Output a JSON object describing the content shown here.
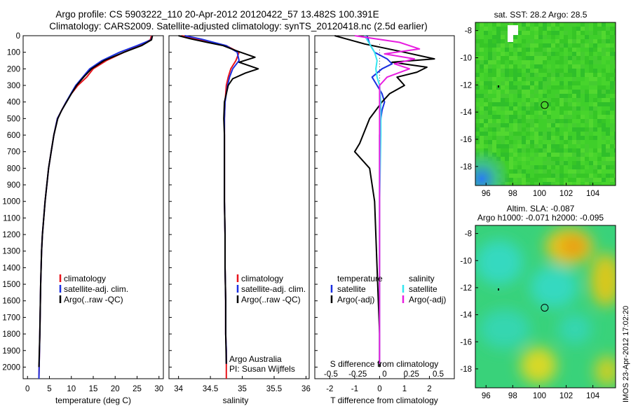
{
  "header": {
    "line1": "Argo profile: CS 5903222_110 20-Apr-2012 20120422_57 13.482S 100.391E",
    "line2": "Climatology: CARS2009. Satellite-adjusted climatology: synTS_20120418.nc (2.5d earlier)"
  },
  "legend": {
    "climatology": "climatology",
    "satellite_adj": "satellite-adj. clim.",
    "argo": "Argo(..raw -QC)",
    "diff_temperature_title": "temperature",
    "diff_salinity_title": "salinity",
    "diff_satellite": "satellite",
    "diff_argo": "Argo(-adj)"
  },
  "credits": {
    "line1": "Argo Australia",
    "line2": "PI: Susan Wijffels"
  },
  "watermark": "IMOS 23-Apr-2012 17:02:20",
  "maps": {
    "sst_title": "sat. SST: 28.2  Argo: 28.5",
    "sla_title1": "Altim. SLA: -0.087",
    "sla_title2": "Argo h1000: -0.071 h2000: -0.095"
  },
  "colors": {
    "climatology": "#e8141c",
    "satellite": "#1a2fe0",
    "argo": "#000000",
    "diff_satellite": "#33e6f0",
    "diff_argo": "#e81ee0"
  },
  "chart_data": [
    {
      "type": "line",
      "name": "temperature-profile",
      "xlabel": "temperature (deg C)",
      "xlim": [
        -1,
        31
      ],
      "ylim": [
        2070,
        0
      ],
      "xticks": [
        0,
        5,
        10,
        15,
        20,
        25,
        30
      ],
      "yticks": [
        0,
        100,
        200,
        300,
        400,
        500,
        600,
        700,
        800,
        900,
        1000,
        1100,
        1200,
        1300,
        1400,
        1500,
        1600,
        1700,
        1800,
        1900,
        2000
      ],
      "series": [
        {
          "name": "climatology",
          "x": [
            28.3,
            28.0,
            25.5,
            22.0,
            18.0,
            15.0,
            13.5,
            11.5,
            10.0,
            8.8,
            7.8,
            6.8,
            6.0,
            5.4,
            4.8,
            4.4,
            4.0,
            3.7,
            3.4,
            3.2,
            3.0,
            2.8,
            2.6
          ],
          "y": [
            0,
            25,
            60,
            100,
            150,
            200,
            250,
            300,
            350,
            400,
            450,
            500,
            600,
            700,
            800,
            900,
            1000,
            1100,
            1200,
            1300,
            1500,
            1800,
            2070
          ]
        },
        {
          "name": "satellite-adj. clim.",
          "x": [
            28.5,
            28.2,
            25.0,
            21.0,
            17.0,
            14.2,
            12.6,
            11.0,
            9.9,
            8.8,
            7.8,
            6.8,
            6.0,
            5.4,
            4.8,
            4.4,
            4.0,
            3.7,
            3.4,
            3.2,
            3.0,
            2.8,
            2.6
          ],
          "y": [
            0,
            25,
            60,
            100,
            150,
            200,
            250,
            300,
            350,
            400,
            450,
            500,
            600,
            700,
            800,
            900,
            1000,
            1100,
            1200,
            1300,
            1500,
            1800,
            2070
          ]
        },
        {
          "name": "Argo(..raw -QC)",
          "x": [
            28.5,
            28.3,
            26.0,
            22.0,
            17.5,
            14.6,
            12.8,
            11.2,
            10.0,
            8.9,
            7.8,
            6.9,
            6.0,
            5.4,
            4.8,
            4.4,
            4.0,
            3.7,
            3.4,
            3.2,
            3.0,
            2.8,
            2.6
          ],
          "y": [
            0,
            25,
            60,
            100,
            150,
            200,
            250,
            300,
            350,
            400,
            450,
            500,
            600,
            700,
            800,
            900,
            1000,
            1100,
            1200,
            1300,
            1500,
            1800,
            2000
          ]
        }
      ]
    },
    {
      "type": "line",
      "name": "salinity-profile",
      "xlabel": "salinity",
      "xlim": [
        33.85,
        36.05
      ],
      "ylim": [
        2070,
        0
      ],
      "xticks": [
        34,
        34.5,
        35,
        35.5,
        36
      ],
      "series": [
        {
          "name": "climatology",
          "x": [
            34.05,
            34.25,
            34.5,
            34.75,
            34.95,
            34.9,
            34.82,
            34.78,
            34.75,
            34.74,
            34.73,
            34.72,
            34.72,
            34.72,
            34.72,
            34.73,
            34.73,
            34.74,
            34.74,
            34.75,
            34.75,
            34.75
          ],
          "y": [
            0,
            20,
            40,
            60,
            100,
            150,
            200,
            250,
            300,
            350,
            400,
            500,
            600,
            800,
            1000,
            1200,
            1400,
            1600,
            1800,
            1900,
            2000,
            2070
          ]
        },
        {
          "name": "satellite-adj. clim.",
          "x": [
            34.1,
            34.35,
            34.55,
            34.75,
            34.92,
            34.95,
            34.85,
            34.8,
            34.77,
            34.75,
            34.73,
            34.72,
            34.72,
            34.72,
            34.72,
            34.73,
            34.73,
            34.74,
            34.74,
            34.75,
            34.75
          ],
          "y": [
            0,
            20,
            40,
            60,
            100,
            150,
            200,
            250,
            300,
            350,
            400,
            500,
            600,
            800,
            1000,
            1200,
            1400,
            1600,
            1800,
            1900,
            1980
          ]
        },
        {
          "name": "Argo(..raw -QC)",
          "x": [
            34.0,
            34.2,
            34.45,
            34.7,
            34.9,
            35.2,
            34.95,
            35.1,
            35.25,
            35.05,
            34.85,
            34.78,
            34.72,
            34.71,
            34.72,
            34.72,
            34.72,
            34.73,
            34.73,
            34.74,
            34.74,
            34.75
          ],
          "y": [
            0,
            20,
            40,
            60,
            90,
            130,
            160,
            180,
            200,
            225,
            260,
            300,
            400,
            500,
            600,
            800,
            1000,
            1200,
            1400,
            1600,
            1800,
            1980
          ]
        }
      ]
    },
    {
      "type": "line",
      "name": "difference-profile",
      "xlabel": "T difference from climatology",
      "x2label": "S difference from climatology",
      "xlim": [
        -2.6,
        3.0
      ],
      "ylim": [
        2070,
        0
      ],
      "xticks": [
        -2,
        -1,
        0,
        1,
        2
      ],
      "x2ticks": [
        -0.5,
        -0.25,
        0,
        0.25,
        0.5
      ],
      "series": [
        {
          "name": "temperature satellite",
          "x": [
            -0.5,
            -0.4,
            -0.2,
            0.3,
            0.5,
            0.1,
            -0.3,
            -0.1,
            0.1,
            0.2,
            0.1,
            0.05,
            0.0,
            0.0,
            0.0,
            0.0,
            0.0,
            0.0
          ],
          "y": [
            0,
            50,
            100,
            140,
            170,
            200,
            250,
            300,
            350,
            400,
            450,
            500,
            600,
            800,
            1000,
            1400,
            1800,
            1980
          ]
        },
        {
          "name": "temperature Argo(-adj)",
          "x": [
            -1.8,
            -0.6,
            1.0,
            2.2,
            0.5,
            1.9,
            1.5,
            0.7,
            1.0,
            0.4,
            0.1,
            -0.4,
            -0.8,
            -1.0,
            -0.4,
            -0.2,
            -0.1,
            0.0,
            0.0
          ],
          "y": [
            0,
            50,
            100,
            140,
            160,
            190,
            220,
            250,
            300,
            350,
            400,
            500,
            650,
            700,
            800,
            1000,
            1400,
            1800,
            2000
          ]
        },
        {
          "name": "salinity satellite",
          "x": [
            -0.6,
            -0.4,
            -0.2,
            -0.1,
            -0.15,
            -0.1,
            0.0,
            0.05,
            0.05,
            0.0,
            0.0,
            0.0
          ],
          "y": [
            0,
            50,
            100,
            150,
            200,
            250,
            300,
            400,
            600,
            1000,
            1400,
            1980
          ]
        },
        {
          "name": "salinity Argo(-adj)",
          "x": [
            -1.0,
            0.8,
            1.6,
            0.2,
            1.4,
            0.6,
            1.2,
            0.3,
            0.0,
            0.0,
            0.0,
            0.0
          ],
          "y": [
            0,
            40,
            80,
            110,
            140,
            170,
            200,
            250,
            300,
            500,
            1000,
            1980
          ]
        }
      ]
    }
  ],
  "map_axes": {
    "xticks": [
      96,
      98,
      100,
      102,
      104
    ],
    "yticks": [
      -8,
      -10,
      -12,
      -14,
      -16,
      -18
    ],
    "xlim": [
      95.2,
      105.7
    ],
    "ylim": [
      -19.4,
      -7.4
    ],
    "argo_position": {
      "lon": 100.391,
      "lat": -13.482
    }
  }
}
